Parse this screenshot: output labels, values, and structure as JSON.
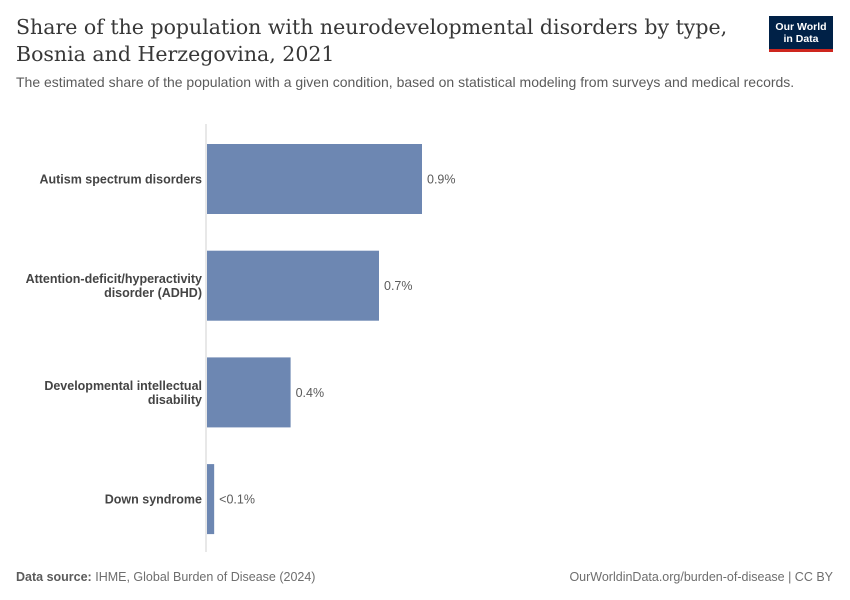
{
  "header": {
    "title": "Share of the population with neurodevelopmental disorders by type, Bosnia and Herzegovina, 2021",
    "subtitle": "The estimated share of the population with a given condition, based on statistical modeling from surveys and medical records."
  },
  "logo": {
    "line1": "Our World",
    "line2": "in Data"
  },
  "footer": {
    "source_label": "Data source:",
    "source_text": "IHME, Global Burden of Disease (2024)",
    "right_text": "OurWorldinData.org/burden-of-disease | CC BY"
  },
  "colors": {
    "bar": "#6d87b2",
    "axis": "#d0d0d0",
    "label": "#444444",
    "value": "#5b5b5b"
  },
  "chart_data": {
    "type": "bar",
    "orientation": "horizontal",
    "categories": [
      [
        "Autism spectrum disorders"
      ],
      [
        "Attention-deficit/hyperactivity",
        "disorder (ADHD)"
      ],
      [
        "Developmental intellectual",
        "disability"
      ],
      [
        "Down syndrome"
      ]
    ],
    "values": [
      0.9,
      0.72,
      0.35,
      0.03
    ],
    "value_labels": [
      "0.9%",
      "0.7%",
      "0.4%",
      "<0.1%"
    ],
    "unit": "%",
    "xlim": [
      0,
      0.9
    ]
  }
}
